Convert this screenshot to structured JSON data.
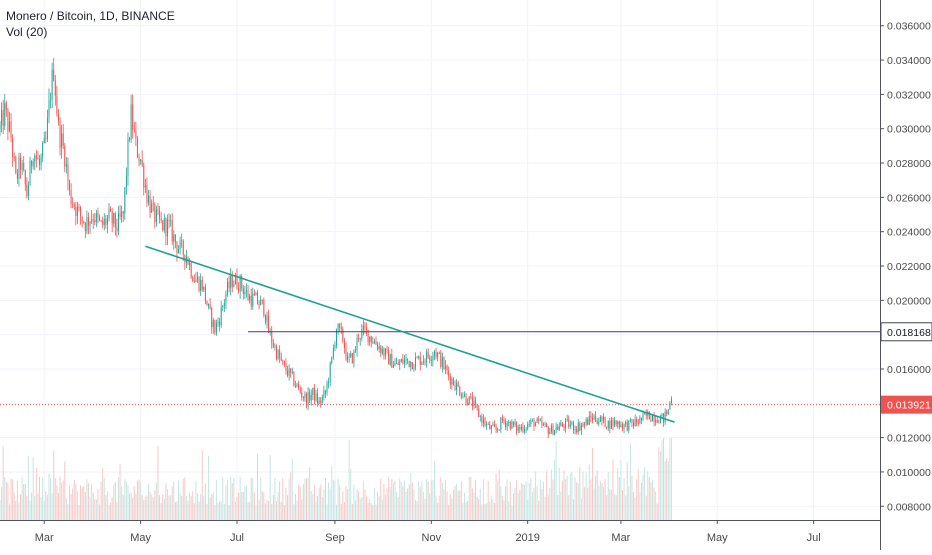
{
  "legend": {
    "symbol": "Monero / Bitcoin, 1D, BINANCE",
    "indicator": "Vol (20)"
  },
  "colors": {
    "up": "#26a69a",
    "down": "#ef5350",
    "vol_up": "#c6e6e2",
    "vol_down": "#f5c9c8",
    "trendline": "#1ea094",
    "hline": "#434651",
    "current_price": "#ef5350",
    "grid": "#f0f3fa",
    "axis_text": "#4a4a4a"
  },
  "chart_data": {
    "type": "candlestick",
    "price_axis": {
      "range": [
        0.0072,
        0.0375
      ],
      "ticks": [
        "0.008000",
        "0.010000",
        "0.012000",
        "0.014000",
        "0.016000",
        "0.018000",
        "0.020000",
        "0.022000",
        "0.024000",
        "0.026000",
        "0.028000",
        "0.030000",
        "0.032000",
        "0.034000",
        "0.036000"
      ]
    },
    "time_axis": {
      "start": "2018-02-01",
      "end": "2019-08-12",
      "labels": [
        {
          "date": "2018-03-01",
          "text": "Mar"
        },
        {
          "date": "2018-05-01",
          "text": "May"
        },
        {
          "date": "2018-07-01",
          "text": "Jul"
        },
        {
          "date": "2018-09-01",
          "text": "Sep"
        },
        {
          "date": "2018-11-01",
          "text": "Nov"
        },
        {
          "date": "2019-01-01",
          "text": "2019"
        },
        {
          "date": "2019-03-01",
          "text": "Mar"
        },
        {
          "date": "2019-05-01",
          "text": "May"
        },
        {
          "date": "2019-07-01",
          "text": "Jul"
        }
      ]
    },
    "price_path": [
      [
        "2018-02-01",
        0.03
      ],
      [
        "2018-02-04",
        0.031
      ],
      [
        "2018-02-08",
        0.0295
      ],
      [
        "2018-02-11",
        0.027
      ],
      [
        "2018-02-14",
        0.028
      ],
      [
        "2018-02-18",
        0.0262
      ],
      [
        "2018-02-22",
        0.0288
      ],
      [
        "2018-02-26",
        0.0278
      ],
      [
        "2018-03-02",
        0.0292
      ],
      [
        "2018-03-05",
        0.0322
      ],
      [
        "2018-03-07",
        0.0335
      ],
      [
        "2018-03-10",
        0.03
      ],
      [
        "2018-03-14",
        0.0285
      ],
      [
        "2018-03-17",
        0.0262
      ],
      [
        "2018-03-22",
        0.0252
      ],
      [
        "2018-03-27",
        0.0245
      ],
      [
        "2018-04-01",
        0.025
      ],
      [
        "2018-04-06",
        0.0243
      ],
      [
        "2018-04-11",
        0.0248
      ],
      [
        "2018-04-16",
        0.0243
      ],
      [
        "2018-04-20",
        0.025
      ],
      [
        "2018-04-23",
        0.0288
      ],
      [
        "2018-04-25",
        0.0308
      ],
      [
        "2018-04-28",
        0.029
      ],
      [
        "2018-05-01",
        0.0282
      ],
      [
        "2018-05-05",
        0.0262
      ],
      [
        "2018-05-09",
        0.025
      ],
      [
        "2018-05-14",
        0.0244
      ],
      [
        "2018-05-19",
        0.0243
      ],
      [
        "2018-05-24",
        0.0232
      ],
      [
        "2018-05-30",
        0.0226
      ],
      [
        "2018-06-04",
        0.0213
      ],
      [
        "2018-06-09",
        0.0209
      ],
      [
        "2018-06-13",
        0.0194
      ],
      [
        "2018-06-17",
        0.0183
      ],
      [
        "2018-06-20",
        0.019
      ],
      [
        "2018-06-24",
        0.0204
      ],
      [
        "2018-06-28",
        0.0212
      ],
      [
        "2018-07-03",
        0.021
      ],
      [
        "2018-07-08",
        0.0202
      ],
      [
        "2018-07-13",
        0.02
      ],
      [
        "2018-07-18",
        0.0196
      ],
      [
        "2018-07-21",
        0.0182
      ],
      [
        "2018-07-25",
        0.0172
      ],
      [
        "2018-07-30",
        0.0162
      ],
      [
        "2018-08-04",
        0.0156
      ],
      [
        "2018-08-09",
        0.0148
      ],
      [
        "2018-08-14",
        0.0142
      ],
      [
        "2018-08-18",
        0.0146
      ],
      [
        "2018-08-22",
        0.014
      ],
      [
        "2018-08-26",
        0.0146
      ],
      [
        "2018-08-30",
        0.0165
      ],
      [
        "2018-09-02",
        0.0184
      ],
      [
        "2018-09-06",
        0.0178
      ],
      [
        "2018-09-09",
        0.0164
      ],
      [
        "2018-09-13",
        0.0168
      ],
      [
        "2018-09-16",
        0.018
      ],
      [
        "2018-09-20",
        0.0182
      ],
      [
        "2018-09-25",
        0.0177
      ],
      [
        "2018-09-30",
        0.0172
      ],
      [
        "2018-10-05",
        0.0166
      ],
      [
        "2018-10-10",
        0.0162
      ],
      [
        "2018-10-15",
        0.0165
      ],
      [
        "2018-10-20",
        0.0164
      ],
      [
        "2018-10-26",
        0.0166
      ],
      [
        "2018-10-31",
        0.0168
      ],
      [
        "2018-11-03",
        0.0171
      ],
      [
        "2018-11-07",
        0.0165
      ],
      [
        "2018-11-12",
        0.0156
      ],
      [
        "2018-11-17",
        0.015
      ],
      [
        "2018-11-22",
        0.0144
      ],
      [
        "2018-11-27",
        0.014
      ],
      [
        "2018-12-02",
        0.0132
      ],
      [
        "2018-12-07",
        0.0126
      ],
      [
        "2018-12-12",
        0.0124
      ],
      [
        "2018-12-16",
        0.013
      ],
      [
        "2018-12-21",
        0.0128
      ],
      [
        "2018-12-26",
        0.0125
      ],
      [
        "2018-12-31",
        0.0127
      ],
      [
        "2019-01-05",
        0.0129
      ],
      [
        "2019-01-10",
        0.0127
      ],
      [
        "2019-01-15",
        0.0124
      ],
      [
        "2019-01-20",
        0.0126
      ],
      [
        "2019-01-26",
        0.0128
      ],
      [
        "2019-02-01",
        0.0126
      ],
      [
        "2019-02-06",
        0.0128
      ],
      [
        "2019-02-11",
        0.0132
      ],
      [
        "2019-02-16",
        0.013
      ],
      [
        "2019-02-21",
        0.0128
      ],
      [
        "2019-02-26",
        0.0129
      ],
      [
        "2019-03-03",
        0.0127
      ],
      [
        "2019-03-08",
        0.0128
      ],
      [
        "2019-03-13",
        0.013
      ],
      [
        "2019-03-18",
        0.0133
      ],
      [
        "2019-03-23",
        0.0132
      ],
      [
        "2019-03-28",
        0.0131
      ],
      [
        "2019-03-31",
        0.0136
      ],
      [
        "2019-04-02",
        0.0145
      ]
    ],
    "volume_range": [
      0,
      1
    ],
    "last_price": "0.013921",
    "hline_price": "0.018168",
    "trendline": {
      "start": [
        "2018-05-04",
        0.02315
      ],
      "end": [
        "2019-04-04",
        0.0129
      ]
    }
  }
}
